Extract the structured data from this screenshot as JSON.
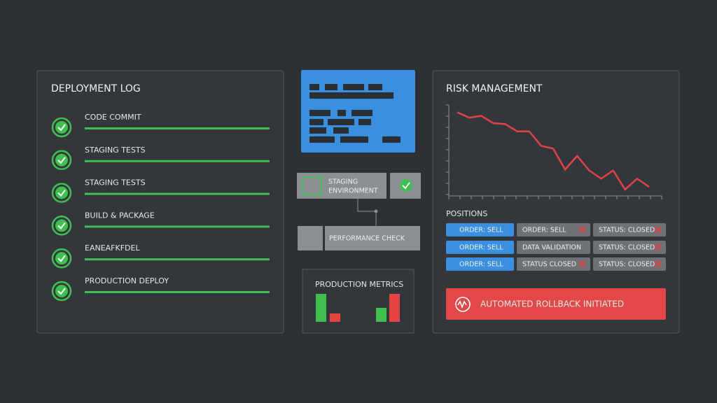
{
  "deployment_log": {
    "title": "DEPLOYMENT LOG",
    "items": [
      "CODE COMMIT",
      "STAGING TESTS",
      "STAGING TESTS",
      "BUILD & PACKAGE",
      "EANEAFKFDEL",
      "PRODUCTION DEPLOY"
    ]
  },
  "pipeline": {
    "staging": "STAGING ENVIRONMENT",
    "performance": "PERFORMANCE CHECK"
  },
  "production_metrics": {
    "title": "PRODUCTION METRICS",
    "chart_data": {
      "type": "bar",
      "values": [
        40,
        12,
        20,
        40
      ],
      "colors": [
        "#3fbf4f",
        "#e24444",
        "#3fbf4f",
        "#e24444"
      ],
      "ylim": [
        0,
        50
      ]
    }
  },
  "risk_management": {
    "title": "RISK MANAGEMENT",
    "chart_data": {
      "type": "line",
      "color": "#e24444",
      "values": [
        92,
        86,
        88,
        80,
        79,
        71,
        71,
        55,
        52,
        29,
        44,
        28,
        19,
        28,
        7,
        19,
        10
      ],
      "ylim": [
        0,
        100
      ]
    },
    "positions_title": "POSITIONS",
    "positions": [
      [
        "ORDER: SELL",
        "ORDER: SELL",
        "STATUS: CLOSED"
      ],
      [
        "ORDER: SELL",
        "DATA VALIDATION",
        "STATUS: CLOSED"
      ],
      [
        "ORDER: SELL",
        "STATUS CLOSED",
        "STATUS: CLOSED"
      ]
    ],
    "alert": "AUTOMATED ROLLBACK INITIATED"
  }
}
